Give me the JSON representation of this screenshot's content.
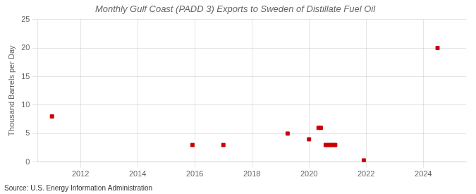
{
  "chart_data": {
    "type": "scatter",
    "title": "Monthly Gulf Coast (PADD 3) Exports to Sweden of Distillate Fuel Oil",
    "ylabel": "Thousand Barrels per Day",
    "annotations": [
      "Source: U.S. Energy Information Administration"
    ],
    "x": [
      2011.0,
      2015.917,
      2017.0,
      2019.25,
      2020.0,
      2020.333,
      2020.417,
      2020.583,
      2020.667,
      2020.75,
      2020.833,
      2020.917,
      2021.917,
      2024.5
    ],
    "values": [
      8.0,
      3.0,
      3.0,
      5.0,
      4.0,
      6.0,
      6.0,
      3.0,
      3.0,
      3.0,
      3.0,
      3.0,
      0.3,
      20.0
    ],
    "color": "#cc0000",
    "marker": "square",
    "xlim": [
      2010.5,
      2025.5
    ],
    "xticks": [
      2012,
      2014,
      2016,
      2018,
      2020,
      2022,
      2024
    ],
    "ylim": [
      0,
      25
    ],
    "yticks": [
      0,
      5,
      10,
      15,
      20,
      25
    ],
    "grid": true
  }
}
